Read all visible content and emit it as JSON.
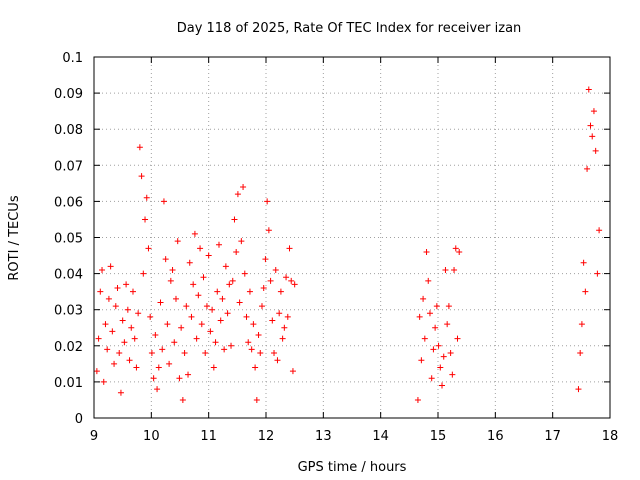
{
  "chart_data": {
    "type": "scatter",
    "title": "Day 118 of 2025, Rate Of TEC Index for receiver izan",
    "xlabel": "GPS time / hours",
    "ylabel": "ROTI / TECUs",
    "xlim": [
      9,
      18
    ],
    "ylim": [
      0,
      0.1
    ],
    "x_ticks": [
      "9",
      "10",
      "11",
      "12",
      "13",
      "14",
      "15",
      "16",
      "17",
      "18"
    ],
    "y_ticks": [
      "0",
      "0.01",
      "0.02",
      "0.03",
      "0.04",
      "0.05",
      "0.06",
      "0.07",
      "0.08",
      "0.09",
      "0.1"
    ],
    "grid": true,
    "marker": "+",
    "color": "#ff0000",
    "series": [
      {
        "x": [
          9.05,
          9.08,
          9.11,
          9.14,
          9.17,
          9.2,
          9.23,
          9.26,
          9.29,
          9.32,
          9.35,
          9.38,
          9.41,
          9.44,
          9.47,
          9.5,
          9.53,
          9.56,
          9.59,
          9.62,
          9.65,
          9.68,
          9.71,
          9.74,
          9.77,
          9.8,
          9.83,
          9.86,
          9.89,
          9.92,
          9.95,
          9.98,
          10.01,
          10.04,
          10.07,
          10.1,
          10.13,
          10.16,
          10.19,
          10.22,
          10.25,
          10.28,
          10.31,
          10.34,
          10.37,
          10.4,
          10.43,
          10.46,
          10.49,
          10.52,
          10.55,
          10.58,
          10.61,
          10.64,
          10.67,
          10.7,
          10.73,
          10.76,
          10.79,
          10.82,
          10.85,
          10.88,
          10.91,
          10.94,
          10.97,
          11.0,
          11.03,
          11.06,
          11.09,
          11.12,
          11.15,
          11.18,
          11.21,
          11.24,
          11.27,
          11.3,
          11.33,
          11.36,
          11.39,
          11.42,
          11.45,
          11.48,
          11.51,
          11.54,
          11.57,
          11.6,
          11.63,
          11.66,
          11.69,
          11.72,
          11.75,
          11.78,
          11.81,
          11.84,
          11.87,
          11.9,
          11.93,
          11.96,
          11.99,
          12.02,
          12.05,
          12.08,
          12.11,
          12.14,
          12.17,
          12.2,
          12.23,
          12.26,
          12.29,
          12.32,
          12.35,
          12.38,
          12.41,
          12.44,
          12.47,
          12.5
        ],
        "y": [
          0.013,
          0.022,
          0.035,
          0.041,
          0.01,
          0.026,
          0.019,
          0.033,
          0.042,
          0.024,
          0.015,
          0.031,
          0.036,
          0.018,
          0.007,
          0.027,
          0.021,
          0.037,
          0.03,
          0.016,
          0.025,
          0.035,
          0.022,
          0.014,
          0.029,
          0.075,
          0.067,
          0.04,
          0.055,
          0.061,
          0.047,
          0.028,
          0.018,
          0.011,
          0.023,
          0.008,
          0.014,
          0.032,
          0.019,
          0.06,
          0.044,
          0.026,
          0.015,
          0.038,
          0.041,
          0.021,
          0.033,
          0.049,
          0.011,
          0.025,
          0.005,
          0.018,
          0.031,
          0.012,
          0.043,
          0.028,
          0.037,
          0.051,
          0.022,
          0.034,
          0.047,
          0.026,
          0.039,
          0.018,
          0.031,
          0.045,
          0.024,
          0.03,
          0.014,
          0.021,
          0.035,
          0.048,
          0.027,
          0.033,
          0.019,
          0.042,
          0.029,
          0.037,
          0.02,
          0.038,
          0.055,
          0.046,
          0.062,
          0.032,
          0.049,
          0.064,
          0.04,
          0.028,
          0.021,
          0.035,
          0.019,
          0.026,
          0.014,
          0.005,
          0.023,
          0.018,
          0.031,
          0.036,
          0.044,
          0.06,
          0.052,
          0.038,
          0.027,
          0.018,
          0.041,
          0.016,
          0.029,
          0.035,
          0.022,
          0.025,
          0.039,
          0.028,
          0.047,
          0.038,
          0.013,
          0.037
        ]
      },
      {
        "x": [
          14.65,
          14.68,
          14.71,
          14.74,
          14.77,
          14.8,
          14.83,
          14.86,
          14.89,
          14.92,
          14.95,
          14.98,
          15.01,
          15.04,
          15.07,
          15.1,
          15.13,
          15.16,
          15.19,
          15.22,
          15.25,
          15.28,
          15.31,
          15.34,
          15.37
        ],
        "y": [
          0.005,
          0.028,
          0.016,
          0.033,
          0.022,
          0.046,
          0.038,
          0.029,
          0.011,
          0.019,
          0.025,
          0.031,
          0.02,
          0.014,
          0.009,
          0.017,
          0.041,
          0.026,
          0.031,
          0.018,
          0.012,
          0.041,
          0.047,
          0.022,
          0.046
        ]
      },
      {
        "x": [
          17.45,
          17.48,
          17.51,
          17.54,
          17.57,
          17.6,
          17.63,
          17.66,
          17.69,
          17.72,
          17.75,
          17.78,
          17.81
        ],
        "y": [
          0.008,
          0.018,
          0.026,
          0.043,
          0.035,
          0.069,
          0.091,
          0.081,
          0.078,
          0.085,
          0.074,
          0.04,
          0.052
        ]
      }
    ]
  }
}
